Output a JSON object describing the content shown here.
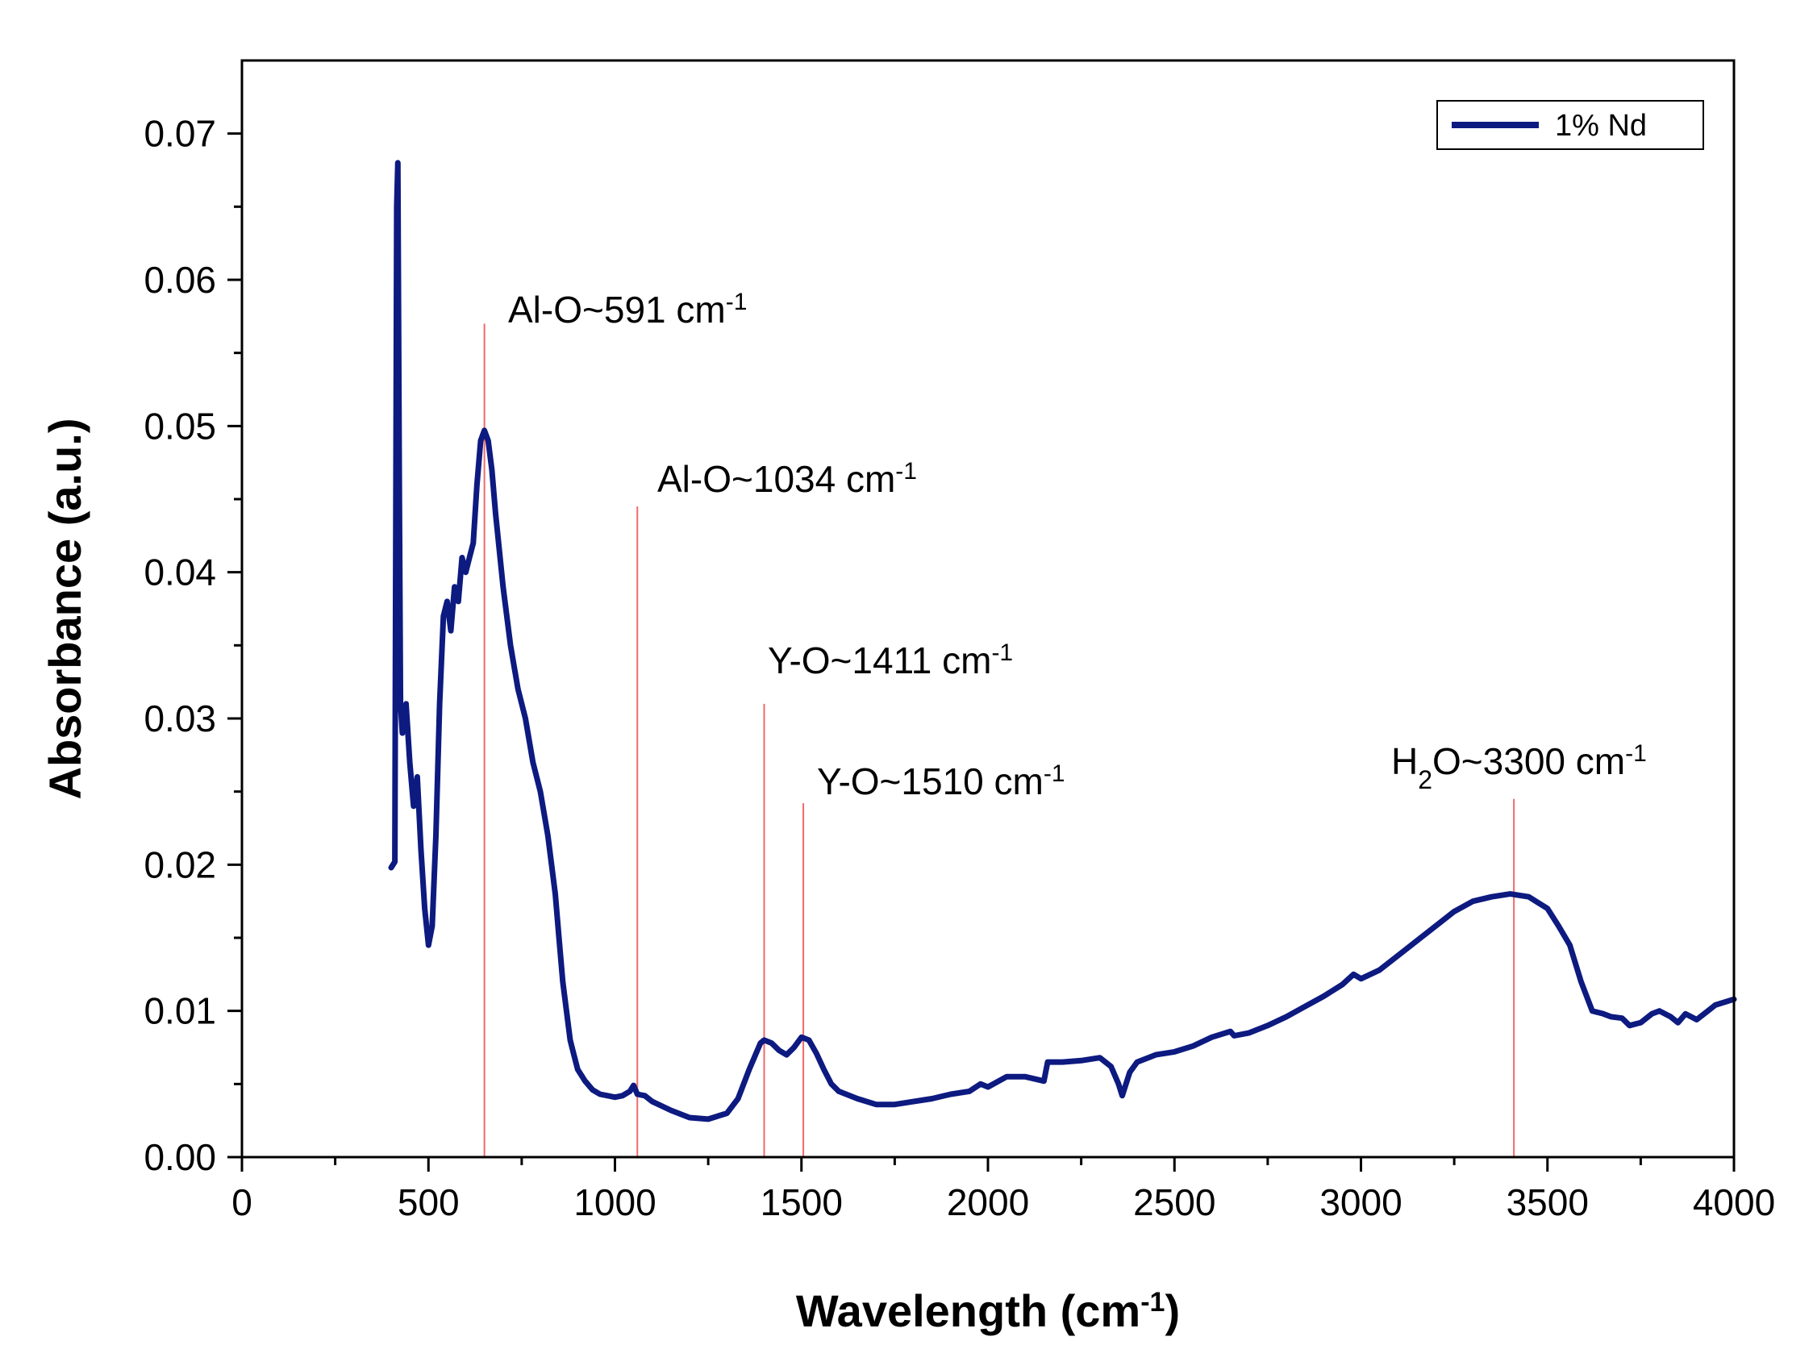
{
  "chart_data": {
    "type": "line",
    "title": "",
    "xlabel": "Wavelength (cm",
    "xlabel_sup": "-1",
    "xlabel_suffix": ")",
    "ylabel": "Absorbance (a.u.)",
    "xlim": [
      0,
      4000
    ],
    "ylim": [
      0,
      0.075
    ],
    "x_ticks": [
      0,
      500,
      1000,
      1500,
      2000,
      2500,
      3000,
      3500,
      4000
    ],
    "x_tick_labels": [
      "0",
      "500",
      "1000",
      "1500",
      "2000",
      "2500",
      "3000",
      "3500",
      "4000"
    ],
    "y_ticks": [
      0.0,
      0.01,
      0.02,
      0.03,
      0.04,
      0.05,
      0.06,
      0.07
    ],
    "y_tick_labels": [
      "0.00",
      "0.01",
      "0.02",
      "0.03",
      "0.04",
      "0.05",
      "0.06",
      "0.07"
    ],
    "grid": false,
    "legend_position": "top-right",
    "colors": {
      "series": "#0d1a80",
      "marker_line": "#f06a6a"
    },
    "series": [
      {
        "name": "1% Nd",
        "x": [
          400,
          410,
          415,
          418,
          422,
          425,
          430,
          440,
          450,
          460,
          470,
          480,
          490,
          500,
          510,
          520,
          530,
          540,
          550,
          560,
          570,
          580,
          590,
          600,
          610,
          620,
          630,
          640,
          650,
          660,
          670,
          680,
          700,
          720,
          740,
          760,
          780,
          800,
          820,
          840,
          850,
          860,
          870,
          880,
          890,
          900,
          920,
          940,
          960,
          980,
          1000,
          1020,
          1040,
          1050,
          1060,
          1080,
          1100,
          1150,
          1200,
          1250,
          1300,
          1330,
          1360,
          1390,
          1400,
          1420,
          1440,
          1460,
          1480,
          1500,
          1520,
          1540,
          1560,
          1580,
          1600,
          1650,
          1700,
          1750,
          1800,
          1850,
          1900,
          1950,
          1980,
          2000,
          2050,
          2100,
          2150,
          2160,
          2200,
          2250,
          2300,
          2330,
          2350,
          2360,
          2380,
          2400,
          2450,
          2500,
          2550,
          2600,
          2650,
          2660,
          2700,
          2750,
          2800,
          2850,
          2900,
          2950,
          2980,
          3000,
          3050,
          3100,
          3150,
          3200,
          3250,
          3300,
          3350,
          3400,
          3450,
          3500,
          3530,
          3560,
          3590,
          3620,
          3650,
          3670,
          3700,
          3720,
          3750,
          3780,
          3800,
          3830,
          3850,
          3870,
          3900,
          3930,
          3950,
          4000
        ],
        "values": [
          0.0198,
          0.0202,
          0.065,
          0.068,
          0.045,
          0.031,
          0.029,
          0.031,
          0.027,
          0.024,
          0.026,
          0.021,
          0.017,
          0.0145,
          0.0158,
          0.022,
          0.031,
          0.037,
          0.038,
          0.036,
          0.039,
          0.038,
          0.041,
          0.04,
          0.041,
          0.042,
          0.046,
          0.049,
          0.0497,
          0.049,
          0.047,
          0.044,
          0.039,
          0.035,
          0.032,
          0.03,
          0.027,
          0.025,
          0.022,
          0.018,
          0.015,
          0.012,
          0.01,
          0.008,
          0.007,
          0.006,
          0.0052,
          0.0046,
          0.0043,
          0.0042,
          0.0041,
          0.0042,
          0.0045,
          0.0049,
          0.0043,
          0.0042,
          0.0038,
          0.0032,
          0.0027,
          0.0026,
          0.003,
          0.004,
          0.006,
          0.0078,
          0.008,
          0.0078,
          0.0073,
          0.007,
          0.0075,
          0.0082,
          0.008,
          0.0071,
          0.006,
          0.005,
          0.0045,
          0.004,
          0.0036,
          0.0036,
          0.0038,
          0.004,
          0.0043,
          0.0045,
          0.005,
          0.0048,
          0.0055,
          0.0055,
          0.0052,
          0.0065,
          0.0065,
          0.0066,
          0.0068,
          0.0062,
          0.005,
          0.0042,
          0.0058,
          0.0065,
          0.007,
          0.0072,
          0.0076,
          0.0082,
          0.0086,
          0.0083,
          0.0085,
          0.009,
          0.0096,
          0.0103,
          0.011,
          0.0118,
          0.0125,
          0.0122,
          0.0128,
          0.0138,
          0.0148,
          0.0158,
          0.0168,
          0.0175,
          0.0178,
          0.018,
          0.0178,
          0.017,
          0.0158,
          0.0145,
          0.012,
          0.01,
          0.0098,
          0.0096,
          0.0095,
          0.009,
          0.0092,
          0.0098,
          0.01,
          0.0096,
          0.0092,
          0.0098,
          0.0094,
          0.01,
          0.0104,
          0.0108
        ]
      }
    ],
    "annotations": [
      {
        "x": 650,
        "top": 0.057,
        "prefix": "Al-O~591 cm",
        "sup": "-1"
      },
      {
        "x": 1060,
        "top": 0.0445,
        "prefix": "Al-O~1034 cm",
        "sup": "-1"
      },
      {
        "x": 1400,
        "top": 0.031,
        "prefix": "Y-O~1411 cm",
        "sup": "-1"
      },
      {
        "x": 1505,
        "top": 0.0242,
        "prefix": "Y-O~1510 cm",
        "sup": "-1"
      },
      {
        "x": 3410,
        "top": 0.0245,
        "prefix": "H",
        "sub": "2",
        "mid": "O~3300 cm",
        "sup": "-1"
      }
    ]
  }
}
